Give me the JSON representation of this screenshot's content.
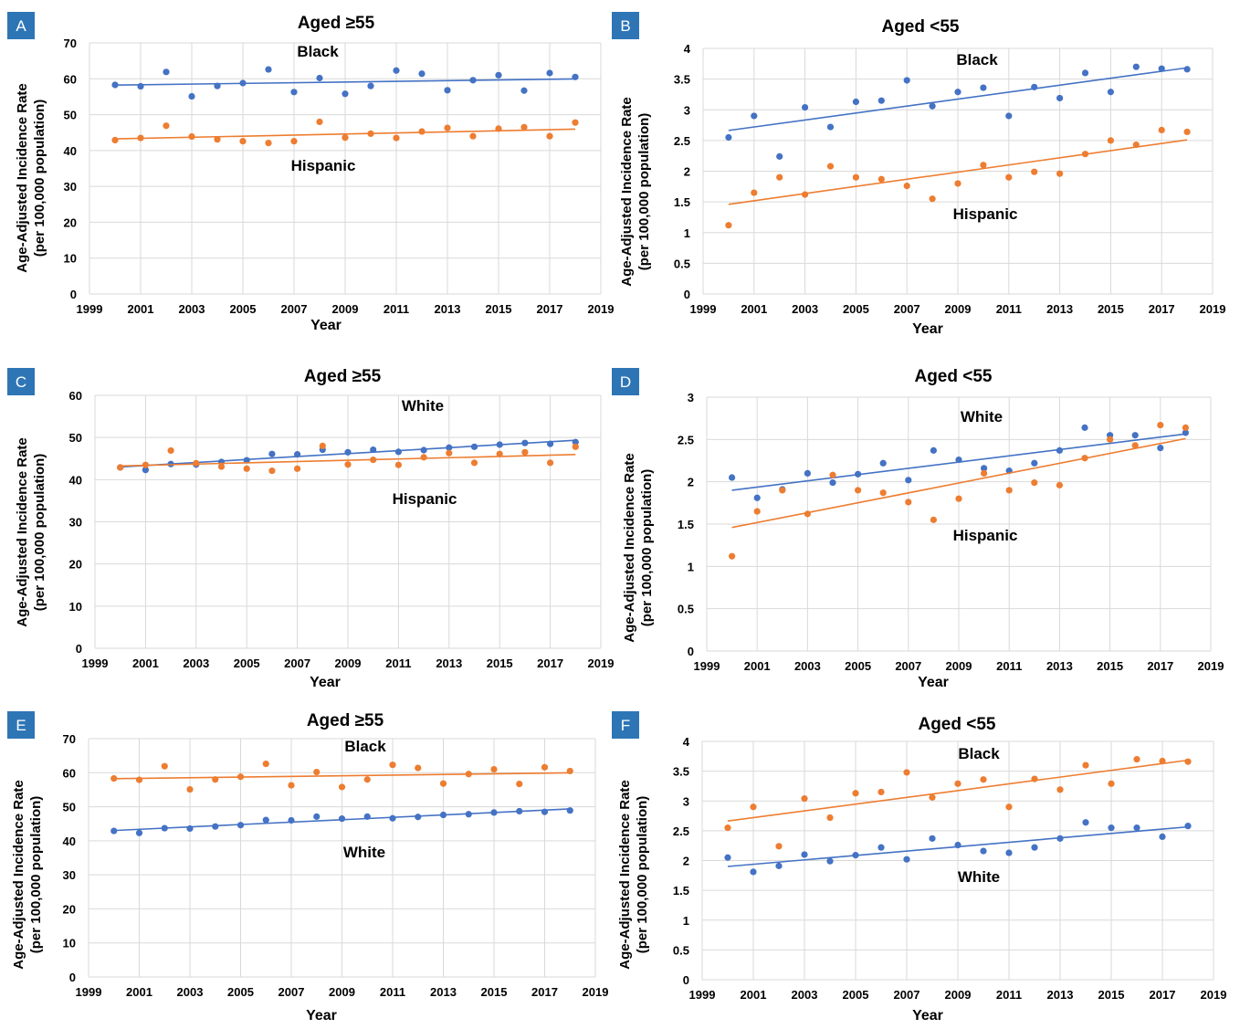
{
  "figure": {
    "colors": {
      "blue": "#4472C4",
      "orange": "#ED7D31",
      "grid": "#D9D9D9",
      "badge": "#2E75B6"
    }
  },
  "chart_data": [
    {
      "panel": "A",
      "type": "scatter",
      "title": "Aged ≥55",
      "xlabel": "Year",
      "ylabel": [
        "Age-Adjusted Incidence Rate",
        "(per 100,000 population)"
      ],
      "xlim": [
        1999,
        2019
      ],
      "ylim": [
        0,
        70
      ],
      "yticks": [
        0,
        10,
        20,
        30,
        40,
        50,
        60,
        70
      ],
      "xticks": [
        1999,
        2001,
        2003,
        2005,
        2007,
        2009,
        2011,
        2013,
        2015,
        2017,
        2019
      ],
      "trendline": "linear",
      "grid": true,
      "series": [
        {
          "name": "Black",
          "color": "blue",
          "x": [
            2000,
            2001,
            2002,
            2003,
            2004,
            2005,
            2006,
            2007,
            2008,
            2009,
            2010,
            2011,
            2012,
            2013,
            2014,
            2015,
            2016,
            2017,
            2018
          ],
          "y": [
            58.3,
            57.9,
            61.9,
            55.1,
            58.0,
            58.8,
            62.6,
            56.3,
            60.2,
            55.8,
            58.0,
            62.3,
            61.4,
            56.8,
            59.6,
            61.0,
            56.7,
            61.6,
            60.5
          ]
        },
        {
          "name": "Hispanic",
          "color": "orange",
          "x": [
            2000,
            2001,
            2002,
            2003,
            2004,
            2005,
            2006,
            2007,
            2008,
            2009,
            2010,
            2011,
            2012,
            2013,
            2014,
            2015,
            2016,
            2017,
            2018
          ],
          "y": [
            42.9,
            43.5,
            46.9,
            43.9,
            43.1,
            42.6,
            42.1,
            42.6,
            48.0,
            43.6,
            44.7,
            43.5,
            45.3,
            46.3,
            44.0,
            46.1,
            46.5,
            44.0,
            47.8
          ]
        }
      ]
    },
    {
      "panel": "B",
      "type": "scatter",
      "title": "Aged <55",
      "xlabel": "Year",
      "ylabel": [
        "Age-Adjusted Incidence Rate",
        "(per 100,000 population)"
      ],
      "xlim": [
        1999,
        2019
      ],
      "ylim": [
        0,
        4
      ],
      "yticks": [
        0,
        0.5,
        1,
        1.5,
        2,
        2.5,
        3,
        3.5,
        4
      ],
      "xticks": [
        1999,
        2001,
        2003,
        2005,
        2007,
        2009,
        2011,
        2013,
        2015,
        2017,
        2019
      ],
      "trendline": "linear",
      "grid": true,
      "series": [
        {
          "name": "Black",
          "color": "blue",
          "x": [
            2000,
            2001,
            2002,
            2003,
            2004,
            2005,
            2006,
            2007,
            2008,
            2009,
            2010,
            2011,
            2012,
            2013,
            2014,
            2015,
            2016,
            2017,
            2018
          ],
          "y": [
            2.55,
            2.9,
            2.24,
            3.04,
            2.72,
            3.13,
            3.15,
            3.48,
            3.06,
            3.29,
            3.36,
            2.9,
            3.37,
            3.19,
            3.6,
            3.29,
            3.7,
            3.67,
            3.66
          ]
        },
        {
          "name": "Hispanic",
          "color": "orange",
          "x": [
            2000,
            2001,
            2002,
            2003,
            2004,
            2005,
            2006,
            2007,
            2008,
            2009,
            2010,
            2011,
            2012,
            2013,
            2014,
            2015,
            2016,
            2017,
            2018
          ],
          "y": [
            1.12,
            1.65,
            1.9,
            1.62,
            2.08,
            1.9,
            1.87,
            1.76,
            1.55,
            1.8,
            2.1,
            1.9,
            1.99,
            1.96,
            2.28,
            2.5,
            2.43,
            2.67,
            2.64
          ]
        }
      ]
    },
    {
      "panel": "C",
      "type": "scatter",
      "title": "Aged ≥55",
      "xlabel": "Year",
      "ylabel": [
        "Age-Adjusted Incidence Rate",
        "(per 100,000 population)"
      ],
      "xlim": [
        1999,
        2019
      ],
      "ylim": [
        0,
        60
      ],
      "yticks": [
        0,
        10,
        20,
        30,
        40,
        50,
        60
      ],
      "xticks": [
        1999,
        2001,
        2003,
        2005,
        2007,
        2009,
        2011,
        2013,
        2015,
        2017,
        2019
      ],
      "trendline": "linear",
      "grid": true,
      "series": [
        {
          "name": "White",
          "color": "blue",
          "x": [
            2000,
            2001,
            2002,
            2003,
            2004,
            2005,
            2006,
            2007,
            2008,
            2009,
            2010,
            2011,
            2012,
            2013,
            2014,
            2015,
            2016,
            2017,
            2018
          ],
          "y": [
            42.9,
            42.3,
            43.7,
            43.6,
            44.2,
            44.6,
            46.1,
            46.0,
            47.1,
            46.5,
            47.1,
            46.6,
            47.0,
            47.6,
            47.8,
            48.3,
            48.7,
            48.5,
            48.9
          ]
        },
        {
          "name": "Hispanic",
          "color": "orange",
          "x": [
            2000,
            2001,
            2002,
            2003,
            2004,
            2005,
            2006,
            2007,
            2008,
            2009,
            2010,
            2011,
            2012,
            2013,
            2014,
            2015,
            2016,
            2017,
            2018
          ],
          "y": [
            42.9,
            43.5,
            46.9,
            43.9,
            43.1,
            42.6,
            42.1,
            42.6,
            48.0,
            43.6,
            44.7,
            43.5,
            45.3,
            46.3,
            44.0,
            46.1,
            46.5,
            44.0,
            47.8
          ]
        }
      ]
    },
    {
      "panel": "D",
      "type": "scatter",
      "title": "Aged <55",
      "xlabel": "Year",
      "ylabel": [
        "Age-Adjusted Incidence Rate",
        "(per 100,000 population)"
      ],
      "xlim": [
        1999,
        2019
      ],
      "ylim": [
        0,
        3
      ],
      "yticks": [
        0,
        0.5,
        1,
        1.5,
        2,
        2.5,
        3
      ],
      "xticks": [
        1999,
        2001,
        2003,
        2005,
        2007,
        2009,
        2011,
        2013,
        2015,
        2017,
        2019
      ],
      "trendline": "linear",
      "grid": true,
      "series": [
        {
          "name": "White",
          "color": "blue",
          "x": [
            2000,
            2001,
            2002,
            2003,
            2004,
            2005,
            2006,
            2007,
            2008,
            2009,
            2010,
            2011,
            2012,
            2013,
            2014,
            2015,
            2016,
            2017,
            2018
          ],
          "y": [
            2.05,
            1.81,
            1.91,
            2.1,
            1.99,
            2.09,
            2.22,
            2.02,
            2.37,
            2.26,
            2.16,
            2.13,
            2.22,
            2.37,
            2.64,
            2.55,
            2.55,
            2.4,
            2.58
          ]
        },
        {
          "name": "Hispanic",
          "color": "orange",
          "x": [
            2000,
            2001,
            2002,
            2003,
            2004,
            2005,
            2006,
            2007,
            2008,
            2009,
            2010,
            2011,
            2012,
            2013,
            2014,
            2015,
            2016,
            2017,
            2018
          ],
          "y": [
            1.12,
            1.65,
            1.9,
            1.62,
            2.08,
            1.9,
            1.87,
            1.76,
            1.55,
            1.8,
            2.1,
            1.9,
            1.99,
            1.96,
            2.28,
            2.5,
            2.43,
            2.67,
            2.64
          ]
        }
      ]
    },
    {
      "panel": "E",
      "type": "scatter",
      "title": "Aged ≥55",
      "xlabel": "Year",
      "ylabel": [
        "Age-Adjusted Incidence Rate",
        "(per 100,000 population)"
      ],
      "xlim": [
        1999,
        2019
      ],
      "ylim": [
        0,
        70
      ],
      "yticks": [
        0,
        10,
        20,
        30,
        40,
        50,
        60,
        70
      ],
      "xticks": [
        1999,
        2001,
        2003,
        2005,
        2007,
        2009,
        2011,
        2013,
        2015,
        2017,
        2019
      ],
      "trendline": "linear",
      "grid": true,
      "series": [
        {
          "name": "Black",
          "color": "orange",
          "x": [
            2000,
            2001,
            2002,
            2003,
            2004,
            2005,
            2006,
            2007,
            2008,
            2009,
            2010,
            2011,
            2012,
            2013,
            2014,
            2015,
            2016,
            2017,
            2018
          ],
          "y": [
            58.3,
            57.9,
            61.9,
            55.1,
            58.0,
            58.8,
            62.6,
            56.3,
            60.2,
            55.8,
            58.0,
            62.3,
            61.4,
            56.8,
            59.6,
            61.0,
            56.7,
            61.6,
            60.5
          ]
        },
        {
          "name": "White",
          "color": "blue",
          "x": [
            2000,
            2001,
            2002,
            2003,
            2004,
            2005,
            2006,
            2007,
            2008,
            2009,
            2010,
            2011,
            2012,
            2013,
            2014,
            2015,
            2016,
            2017,
            2018
          ],
          "y": [
            42.9,
            42.3,
            43.7,
            43.6,
            44.2,
            44.6,
            46.1,
            46.0,
            47.1,
            46.5,
            47.1,
            46.6,
            47.0,
            47.6,
            47.8,
            48.3,
            48.7,
            48.5,
            48.9
          ]
        }
      ]
    },
    {
      "panel": "F",
      "type": "scatter",
      "title": "Aged <55",
      "xlabel": "Year",
      "ylabel": [
        "Age-Adjusted Incidence Rate",
        "(per 100,000 population)"
      ],
      "xlim": [
        1999,
        2019
      ],
      "ylim": [
        0,
        4
      ],
      "yticks": [
        0,
        0.5,
        1,
        1.5,
        2,
        2.5,
        3,
        3.5,
        4
      ],
      "xticks": [
        1999,
        2001,
        2003,
        2005,
        2007,
        2009,
        2011,
        2013,
        2015,
        2017,
        2019
      ],
      "trendline": "linear",
      "grid": true,
      "series": [
        {
          "name": "Black",
          "color": "orange",
          "x": [
            2000,
            2001,
            2002,
            2003,
            2004,
            2005,
            2006,
            2007,
            2008,
            2009,
            2010,
            2011,
            2012,
            2013,
            2014,
            2015,
            2016,
            2017,
            2018
          ],
          "y": [
            2.55,
            2.9,
            2.24,
            3.04,
            2.72,
            3.13,
            3.15,
            3.48,
            3.06,
            3.29,
            3.36,
            2.9,
            3.37,
            3.19,
            3.6,
            3.29,
            3.7,
            3.67,
            3.66
          ]
        },
        {
          "name": "White",
          "color": "blue",
          "x": [
            2000,
            2001,
            2002,
            2003,
            2004,
            2005,
            2006,
            2007,
            2008,
            2009,
            2010,
            2011,
            2012,
            2013,
            2014,
            2015,
            2016,
            2017,
            2018
          ],
          "y": [
            2.05,
            1.81,
            1.91,
            2.1,
            1.99,
            2.09,
            2.22,
            2.02,
            2.37,
            2.26,
            2.16,
            2.13,
            2.22,
            2.37,
            2.64,
            2.55,
            2.55,
            2.4,
            2.58
          ]
        }
      ]
    }
  ]
}
